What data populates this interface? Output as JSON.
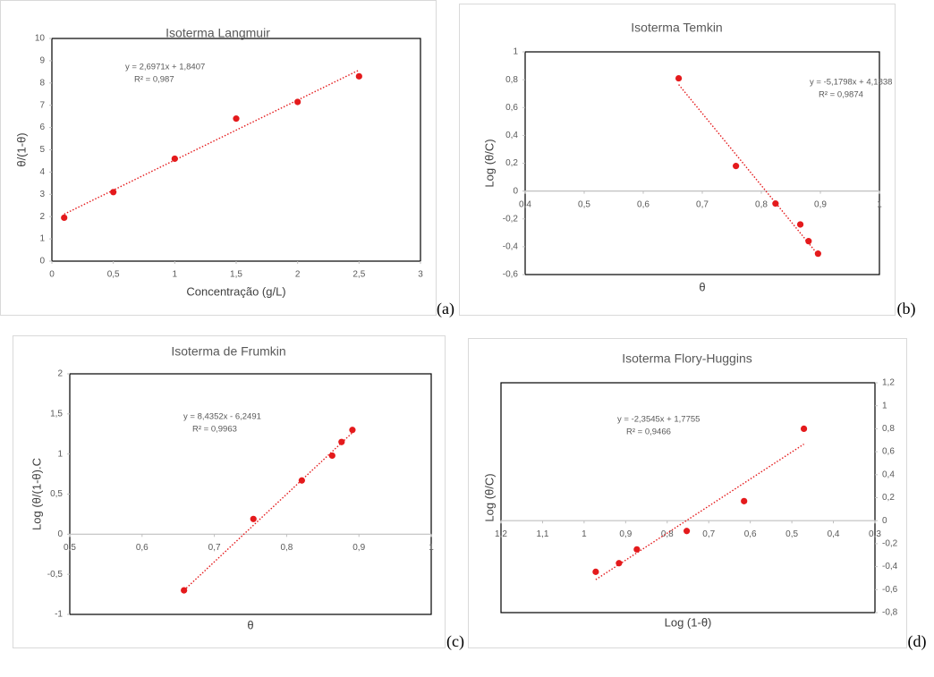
{
  "chart_data": [
    {
      "type": "scatter",
      "title": "Isoterma Langmuir",
      "x_label": "Concentração (g/L)",
      "y_label": "θ/(1-θ)",
      "panel_label": "(a)",
      "equation": "y = 2,6971x + 1,8407",
      "r_squared": "R² = 0,987",
      "color": "#e41a1c",
      "yaxis_position": "left",
      "x": [
        0.1,
        0.5,
        1,
        1.5,
        2,
        2.5
      ],
      "values": [
        1.95,
        3.1,
        4.6,
        6.4,
        7.15,
        8.3
      ],
      "trendline": {
        "x": [
          0.1,
          2.5
        ],
        "values": [
          2.11,
          8.58
        ]
      },
      "xlim": [
        0,
        3
      ],
      "xticks": [
        0,
        {
          "value": 0.5,
          "label": "0,5"
        },
        1,
        {
          "value": 1.5,
          "label": "1,5"
        },
        2,
        {
          "value": 2.5,
          "label": "2,5"
        },
        3
      ],
      "ylim": [
        0,
        10
      ],
      "yticks": [
        0,
        1,
        2,
        3,
        4,
        5,
        6,
        7,
        8,
        9,
        10
      ]
    },
    {
      "type": "scatter",
      "title": "Isoterma Temkin",
      "x_label": "θ",
      "y_label": "Log (θ/C)",
      "panel_label": "(b)",
      "equation": "y = -5,1798x + 4,1838",
      "r_squared": "R² = 0,9874",
      "color": "#e41a1c",
      "yaxis_position": "left",
      "x": [
        0.66,
        0.757,
        0.824,
        0.866,
        0.88,
        0.896
      ],
      "values": [
        0.81,
        0.18,
        -0.09,
        -0.24,
        -0.36,
        -0.45
      ],
      "trendline": {
        "x": [
          0.66,
          0.896
        ],
        "values": [
          0.765,
          -0.457
        ]
      },
      "xlim": [
        0.4,
        1
      ],
      "xticks": [
        {
          "value": 0.4,
          "label": "0,4"
        },
        {
          "value": 0.5,
          "label": "0,5"
        },
        {
          "value": 0.6,
          "label": "0,6"
        },
        {
          "value": 0.7,
          "label": "0,7"
        },
        {
          "value": 0.8,
          "label": "0,8"
        },
        {
          "value": 0.9,
          "label": "0,9"
        },
        1
      ],
      "ylim": [
        -0.6,
        1
      ],
      "yticks": [
        {
          "value": -0.6,
          "label": "-0,6"
        },
        {
          "value": -0.4,
          "label": "-0,4"
        },
        {
          "value": -0.2,
          "label": "-0,2"
        },
        0,
        {
          "value": 0.2,
          "label": "0,2"
        },
        {
          "value": 0.4,
          "label": "0,4"
        },
        {
          "value": 0.6,
          "label": "0,6"
        },
        {
          "value": 0.8,
          "label": "0,8"
        },
        1
      ]
    },
    {
      "type": "scatter",
      "title": "Isoterma de Frumkin",
      "x_label": "θ",
      "y_label": "Log (θ/(1-θ).C",
      "panel_label": "(c)",
      "equation": "y = 8,4352x - 6,2491",
      "r_squared": "R² = 0,9963",
      "color": "#e41a1c",
      "yaxis_position": "left",
      "x": [
        0.658,
        0.754,
        0.821,
        0.863,
        0.876,
        0.891
      ],
      "values": [
        -0.7,
        0.19,
        0.67,
        0.98,
        1.15,
        1.3
      ],
      "trendline": {
        "x": [
          0.658,
          0.891
        ],
        "values": [
          -0.699,
          1.267
        ]
      },
      "xlim": [
        0.5,
        1
      ],
      "xticks": [
        {
          "value": 0.5,
          "label": "0,5"
        },
        {
          "value": 0.6,
          "label": "0,6"
        },
        {
          "value": 0.7,
          "label": "0,7"
        },
        {
          "value": 0.8,
          "label": "0,8"
        },
        {
          "value": 0.9,
          "label": "0,9"
        },
        1
      ],
      "ylim": [
        -1,
        2
      ],
      "yticks": [
        -1,
        {
          "value": -0.5,
          "label": "-0,5"
        },
        0,
        {
          "value": 0.5,
          "label": "0,5"
        },
        1,
        {
          "value": 1.5,
          "label": "1,5"
        },
        2
      ]
    },
    {
      "type": "scatter",
      "title": "Isoterma Flory-Huggins",
      "x_label": "Log (1-θ)",
      "y_label": "Log (θ/C)",
      "panel_label": "(d)",
      "equation": "y = -2,3545x + 1,7755",
      "r_squared": "R² = 0,9466",
      "color": "#e41a1c",
      "yaxis_position": "right",
      "x": [
        0.972,
        0.916,
        0.873,
        0.753,
        0.615,
        0.471
      ],
      "values": [
        -0.445,
        -0.37,
        -0.25,
        -0.09,
        0.17,
        0.8
      ],
      "trendline": {
        "x": [
          0.972,
          0.471
        ],
        "values": [
          -0.513,
          0.666
        ]
      },
      "xlim": [
        1.2,
        0.3
      ],
      "xticks": [
        {
          "value": 1.2,
          "label": "1,2"
        },
        {
          "value": 1.1,
          "label": "1,1"
        },
        1,
        {
          "value": 0.9,
          "label": "0,9"
        },
        {
          "value": 0.8,
          "label": "0,8"
        },
        {
          "value": 0.7,
          "label": "0,7"
        },
        {
          "value": 0.6,
          "label": "0,6"
        },
        {
          "value": 0.5,
          "label": "0,5"
        },
        {
          "value": 0.4,
          "label": "0,4"
        },
        {
          "value": 0.3,
          "label": "0,3"
        }
      ],
      "ylim": [
        -0.8,
        1.2
      ],
      "yticks": [
        {
          "value": -0.8,
          "label": "-0,8"
        },
        {
          "value": -0.6,
          "label": "-0,6"
        },
        {
          "value": -0.4,
          "label": "-0,4"
        },
        {
          "value": -0.2,
          "label": "-0,2"
        },
        0,
        {
          "value": 0.2,
          "label": "0,2"
        },
        {
          "value": 0.4,
          "label": "0,4"
        },
        {
          "value": 0.6,
          "label": "0,6"
        },
        {
          "value": 0.8,
          "label": "0,8"
        },
        1,
        {
          "value": 1.2,
          "label": "1,2"
        }
      ]
    }
  ]
}
